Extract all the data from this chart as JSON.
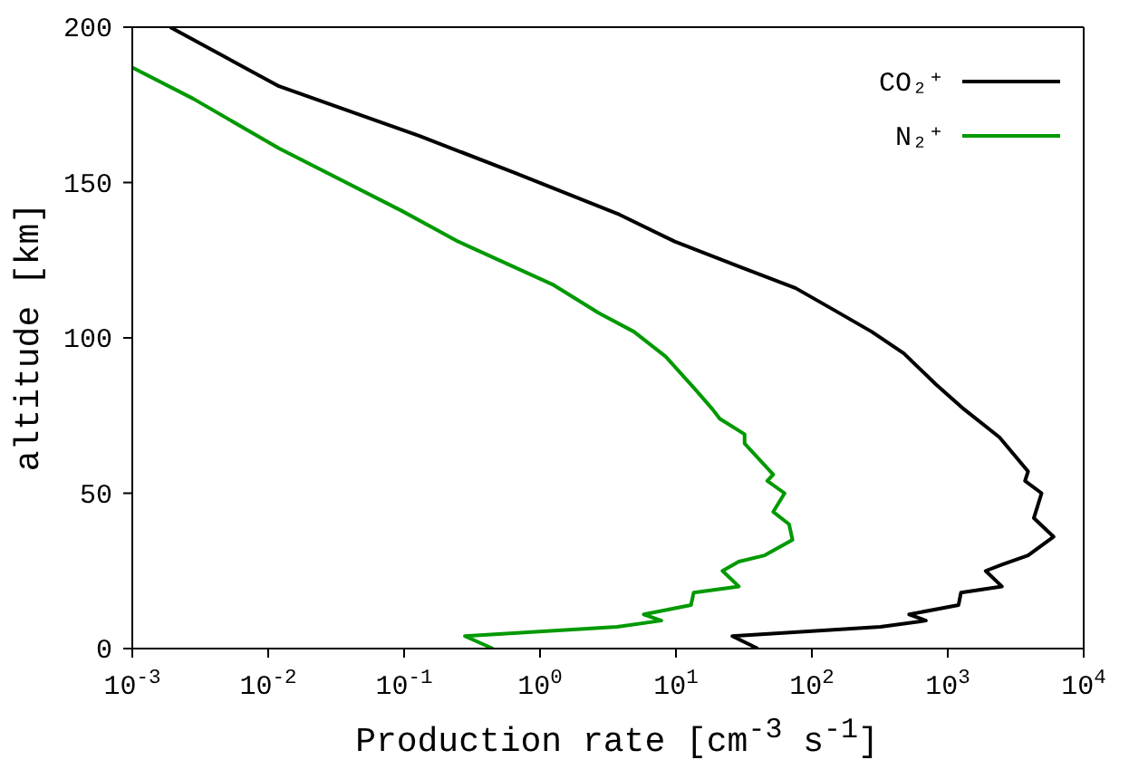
{
  "chart_data": {
    "type": "line",
    "xlabel": "Production rate [cm$^{-3}$ s$^{-1}$]",
    "ylabel": "altitude [km]",
    "log": "x",
    "legend": "top right",
    "marker": "none",
    "line_style": "solid",
    "xlim": [
      0.001,
      10000
    ],
    "xticks": [
      {
        "value": 0.001,
        "label": "10$^{-3}$"
      },
      {
        "value": 0.01,
        "label": "10$^{-2}$"
      },
      {
        "value": 0.1,
        "label": "10$^{-1}$"
      },
      {
        "value": 1,
        "label": "10$^{0}$"
      },
      {
        "value": 10,
        "label": "10$^{1}$"
      },
      {
        "value": 100,
        "label": "10$^{2}$"
      },
      {
        "value": 1000,
        "label": "10$^{3}$"
      },
      {
        "value": 10000,
        "label": "10$^{4}$"
      }
    ],
    "ylim": [
      0,
      200
    ],
    "yticks": [
      0,
      50,
      100,
      150,
      200
    ],
    "series": [
      {
        "name": "CO₂⁺",
        "color": "#000000",
        "x": [
          0.0019,
          0.012,
          0.13,
          0.66,
          3.7,
          9.8,
          29,
          76,
          145,
          275,
          475,
          820,
          1320,
          2400,
          3900,
          3700,
          4900,
          4300,
          6000,
          3900,
          2500,
          1900,
          2500,
          1250,
          1200,
          520,
          690,
          320,
          26,
          40
        ],
        "values": [
          200,
          181,
          165,
          153,
          140,
          131,
          123,
          116,
          109,
          102,
          95,
          85,
          77,
          68,
          57,
          54,
          50,
          42,
          36,
          30,
          27,
          25,
          20,
          18,
          14,
          11,
          9,
          7,
          4,
          0
        ]
      },
      {
        "name": "N₂⁺",
        "color": "#009900",
        "x": [
          0.001,
          0.0028,
          0.012,
          0.095,
          0.25,
          1.26,
          2.7,
          4.9,
          8.4,
          13.5,
          18.6,
          21,
          32,
          32,
          52,
          47,
          63,
          52,
          68,
          72,
          45,
          29,
          22,
          29,
          13.5,
          12.9,
          5.8,
          7.8,
          3.7,
          0.28,
          0.45
        ],
        "values": [
          187,
          177,
          161,
          141,
          131,
          117,
          108,
          102,
          94,
          84,
          77,
          74,
          69,
          66,
          56,
          54,
          50,
          44,
          40,
          35,
          30,
          28,
          25,
          20,
          18,
          14,
          11,
          9,
          7,
          4,
          0
        ]
      }
    ]
  }
}
